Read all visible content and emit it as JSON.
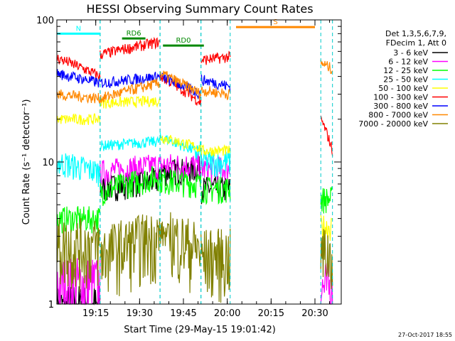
{
  "chart_data": {
    "type": "line",
    "title": "HESSI Observing Summary Count Rates",
    "xlabel": "Start Time (29-May-15 19:01:42)",
    "ylabel": "Count Rate (s⁻¹ detector⁻¹)",
    "yscale": "log",
    "ylim": [
      1,
      100
    ],
    "xlim": [
      "19:01:42",
      "20:39:00"
    ],
    "x_ticks": [
      "19:15",
      "19:30",
      "19:45",
      "20:00",
      "20:15",
      "20:30"
    ],
    "y_ticks": [
      "1",
      "10",
      "100"
    ],
    "legend_header": [
      "Det 1,3,5,6,7,9,",
      "FDecim 1, Att 0"
    ],
    "legend_position": "right",
    "footer": "27-Oct-2017 18:55",
    "segments": [
      [
        "19:01:42",
        "19:16:30"
      ],
      [
        "19:16:30",
        "19:37:00"
      ],
      [
        "19:37:00",
        "19:51:00"
      ],
      [
        "19:51:00",
        "20:01:00"
      ],
      [
        "20:32:00",
        "20:36:00"
      ]
    ],
    "series": [
      {
        "name": "3 - 6 keV",
        "color": "#000000",
        "values": [
          [
            0.9,
            0.9
          ],
          [
            6.5,
            7.5
          ],
          [
            8.5,
            9.0
          ],
          [
            6.5,
            6.5
          ],
          [
            null,
            null
          ]
        ]
      },
      {
        "name": "6 - 12 keV",
        "color": "#ff00ff",
        "values": [
          [
            1.4,
            1.4
          ],
          [
            8.5,
            9.5
          ],
          [
            9.5,
            9.5
          ],
          [
            9.0,
            9.0
          ],
          [
            1.3,
            1.3
          ]
        ]
      },
      {
        "name": "12 - 25 keV",
        "color": "#00ff00",
        "values": [
          [
            4.0,
            4.0
          ],
          [
            6.2,
            8.0
          ],
          [
            7.5,
            7.0
          ],
          [
            6.5,
            6.5
          ],
          [
            5.5,
            5.5
          ]
        ]
      },
      {
        "name": "25 - 50 keV",
        "color": "#00ffff",
        "values": [
          [
            10.0,
            8.5
          ],
          [
            13.0,
            14.0
          ],
          [
            15.0,
            11.5
          ],
          [
            10.0,
            10.0
          ],
          [
            null,
            null
          ]
        ]
      },
      {
        "name": "50 - 100 keV",
        "color": "#ffff00",
        "values": [
          [
            20.0,
            20.0
          ],
          [
            26.0,
            27.0
          ],
          [
            15.0,
            12.5
          ],
          [
            12.0,
            12.0
          ],
          [
            3.5,
            3.5
          ]
        ]
      },
      {
        "name": "100 - 300 keV",
        "color": "#ff0000",
        "values": [
          [
            54.0,
            40.0
          ],
          [
            57.0,
            70.0
          ],
          [
            40.0,
            26.0
          ],
          [
            52.0,
            55.0
          ],
          [
            20.0,
            12.0
          ]
        ]
      },
      {
        "name": "300 - 800 keV",
        "color": "#0000ff",
        "values": [
          [
            42.0,
            36.0
          ],
          [
            36.0,
            40.0
          ],
          [
            40.0,
            30.0
          ],
          [
            38.0,
            34.0
          ],
          [
            null,
            null
          ]
        ]
      },
      {
        "name": "800 - 7000 keV",
        "color": "#ff8800",
        "values": [
          [
            30.0,
            28.0
          ],
          [
            28.0,
            36.0
          ],
          [
            42.0,
            30.0
          ],
          [
            32.0,
            30.0
          ],
          [
            50.0,
            45.0
          ]
        ]
      },
      {
        "name": "7000 - 20000 keV",
        "color": "#808000",
        "values": [
          [
            2.6,
            2.6
          ],
          [
            2.3,
            3.0
          ],
          [
            3.2,
            2.4
          ],
          [
            2.2,
            2.2
          ],
          [
            2.3,
            2.3
          ]
        ]
      }
    ],
    "annotations": [
      {
        "label": "N",
        "color": "#00ffff",
        "y": 80,
        "x_start": "19:01:42",
        "x_end": "19:16:30"
      },
      {
        "label": "RD0",
        "color": "#008800",
        "y": 66,
        "x_start": "19:38:00",
        "x_end": "19:52:00"
      },
      {
        "label": "RD6",
        "color": "#008800",
        "y": 74,
        "x_start": "19:24:00",
        "x_end": "19:32:00"
      },
      {
        "label": "S",
        "color": "#ff8800",
        "y": 89,
        "x_start": "20:03:00",
        "x_end": "20:30:00"
      }
    ]
  }
}
